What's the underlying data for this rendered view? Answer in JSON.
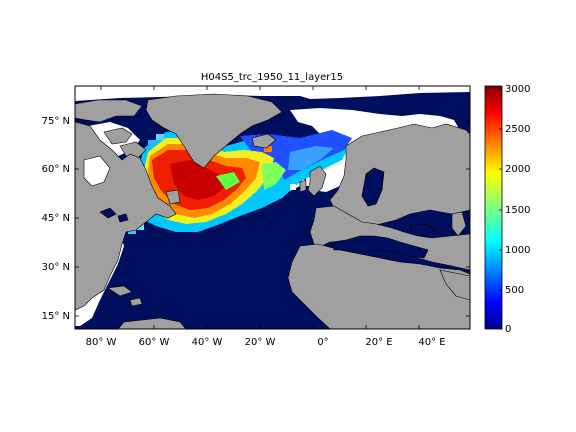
{
  "figure": {
    "title": "H04S5_trc_1950_11_layer15"
  },
  "map": {
    "land_color": "#a0a0a0",
    "ocean_color": "#000e5e",
    "missing_color": "#ffffff",
    "x_ticks": [
      {
        "label": "80° W"
      },
      {
        "label": "60° W"
      },
      {
        "label": "40° W"
      },
      {
        "label": "20° W"
      },
      {
        "label": "0°"
      },
      {
        "label": "20° E"
      },
      {
        "label": "40° E"
      }
    ],
    "y_ticks": [
      {
        "label": "75° N"
      },
      {
        "label": "60° N"
      },
      {
        "label": "45° N"
      },
      {
        "label": "30° N"
      },
      {
        "label": "15° N"
      }
    ]
  },
  "colorbar": {
    "colormap": "jet",
    "min": 0,
    "max": 3000,
    "ticks": [
      "3000",
      "2500",
      "2000",
      "1500",
      "1000",
      "500",
      "0"
    ]
  }
}
